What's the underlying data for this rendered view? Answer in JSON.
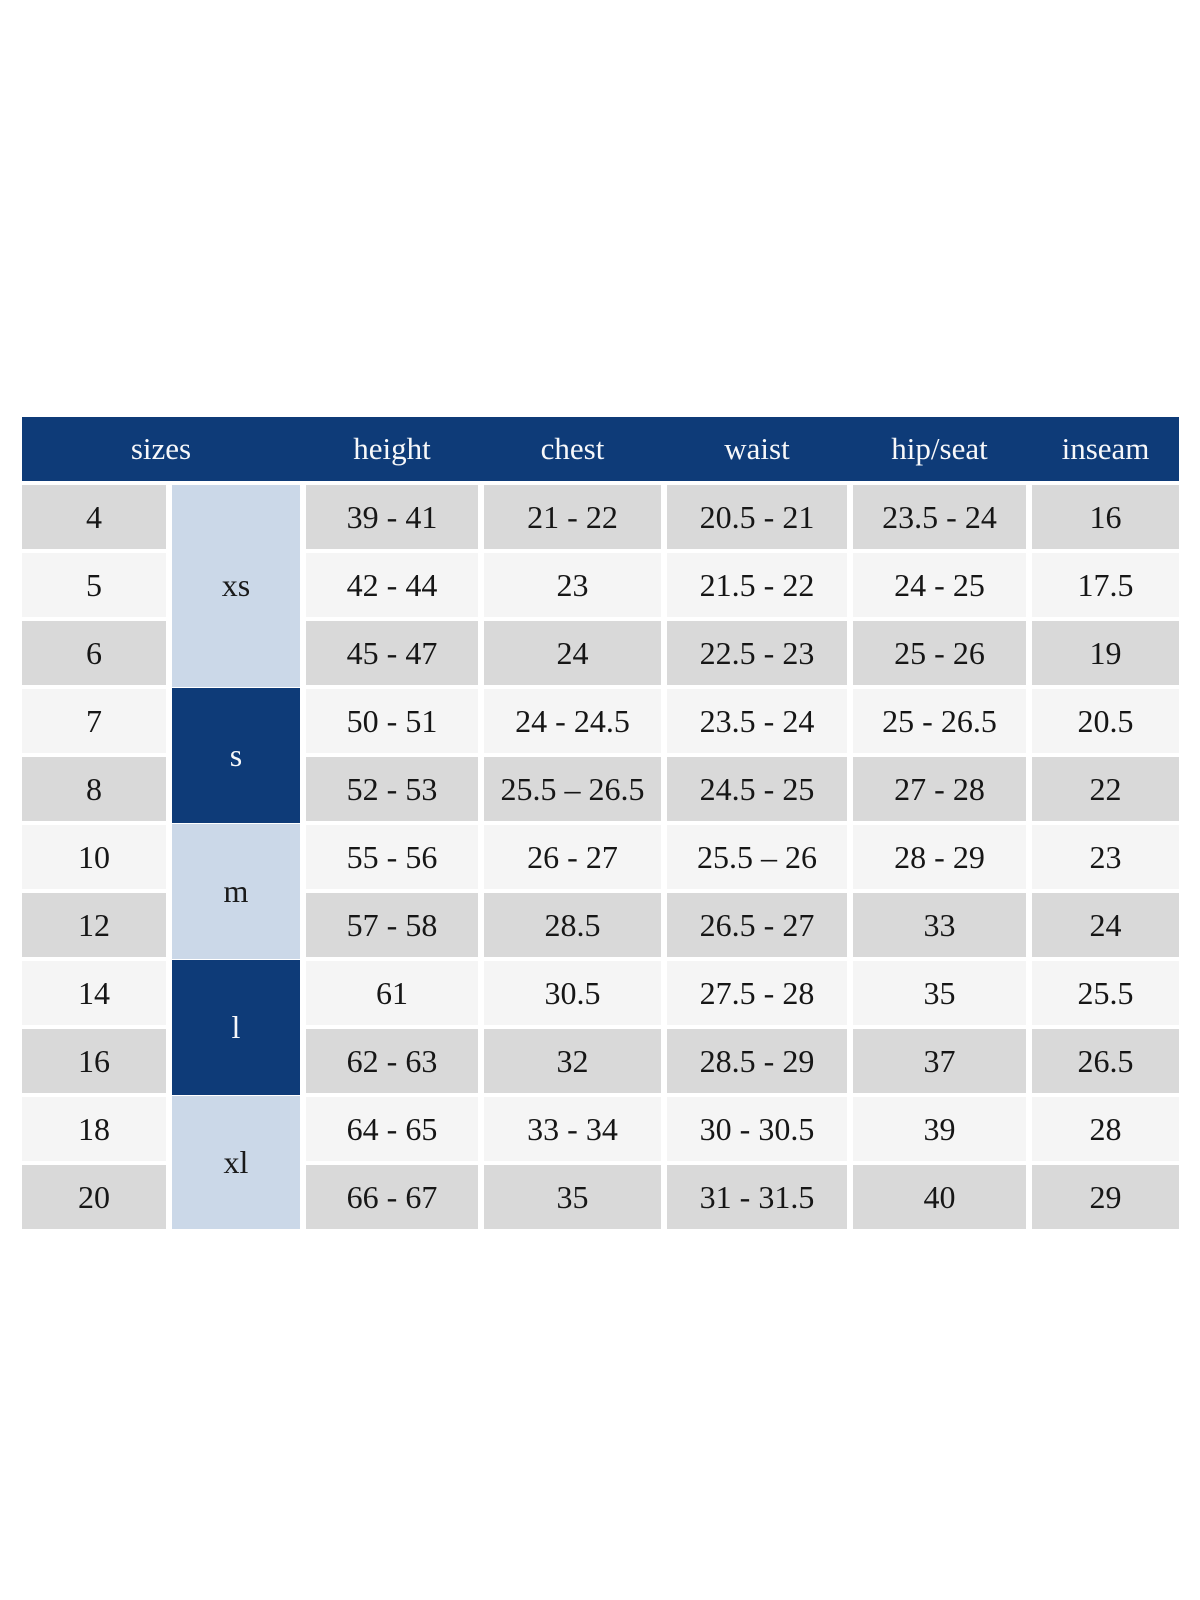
{
  "table": {
    "headers": [
      "sizes",
      "height",
      "chest",
      "waist",
      "hip/seat",
      "inseam"
    ],
    "size_groups": [
      {
        "label": "xs",
        "rows_spanned": 3,
        "style": "light-blue"
      },
      {
        "label": "s",
        "rows_spanned": 2,
        "style": "navy"
      },
      {
        "label": "m",
        "rows_spanned": 2,
        "style": "light-blue"
      },
      {
        "label": "l",
        "rows_spanned": 2,
        "style": "navy"
      },
      {
        "label": "xl",
        "rows_spanned": 2,
        "style": "light-blue"
      }
    ],
    "rows": [
      {
        "size": "4",
        "height": "39 - 41",
        "chest": "21 - 22",
        "waist": "20.5 - 21",
        "hip_seat": "23.5 - 24",
        "inseam": "16"
      },
      {
        "size": "5",
        "height": "42 - 44",
        "chest": "23",
        "waist": "21.5 - 22",
        "hip_seat": "24 - 25",
        "inseam": "17.5"
      },
      {
        "size": "6",
        "height": "45 - 47",
        "chest": "24",
        "waist": "22.5 - 23",
        "hip_seat": "25 - 26",
        "inseam": "19"
      },
      {
        "size": "7",
        "height": "50 - 51",
        "chest": "24 - 24.5",
        "waist": "23.5 - 24",
        "hip_seat": "25 - 26.5",
        "inseam": "20.5"
      },
      {
        "size": "8",
        "height": "52 - 53",
        "chest": "25.5 – 26.5",
        "waist": "24.5 - 25",
        "hip_seat": "27 - 28",
        "inseam": "22"
      },
      {
        "size": "10",
        "height": "55 - 56",
        "chest": "26 - 27",
        "waist": "25.5 – 26",
        "hip_seat": "28 - 29",
        "inseam": "23"
      },
      {
        "size": "12",
        "height": "57 - 58",
        "chest": "28.5",
        "waist": "26.5 - 27",
        "hip_seat": "33",
        "inseam": "24"
      },
      {
        "size": "14",
        "height": "61",
        "chest": "30.5",
        "waist": "27.5 - 28",
        "hip_seat": "35",
        "inseam": "25.5"
      },
      {
        "size": "16",
        "height": "62 - 63",
        "chest": "32",
        "waist": "28.5 - 29",
        "hip_seat": "37",
        "inseam": "26.5"
      },
      {
        "size": "18",
        "height": "64 - 65",
        "chest": "33 - 34",
        "waist": "30 - 30.5",
        "hip_seat": "39",
        "inseam": "28"
      },
      {
        "size": "20",
        "height": "66 - 67",
        "chest": "35",
        "waist": "31 - 31.5",
        "hip_seat": "40",
        "inseam": "29"
      }
    ],
    "colors": {
      "header_navy": "#0e3b78",
      "group_navy": "#0e3b78",
      "group_light_blue": "#cbd8e8",
      "row_gray": "#d9d9d9",
      "row_light": "#f5f5f5",
      "header_text": "#f7f8fa",
      "body_text": "#161616"
    }
  }
}
